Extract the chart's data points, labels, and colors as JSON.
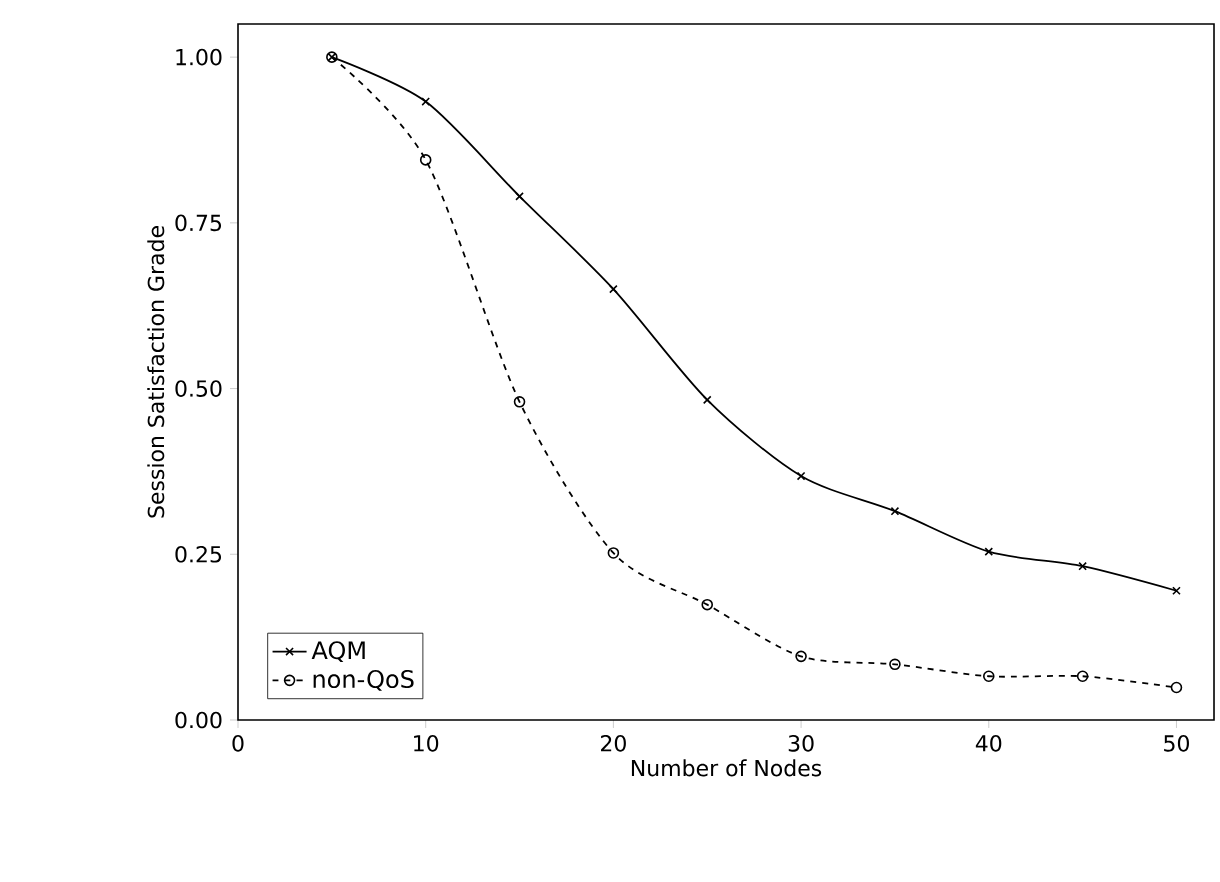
{
  "chart_data": {
    "type": "line",
    "xlabel": "Number of Nodes",
    "ylabel": "Session Satisfaction Grade",
    "x": [
      5,
      10,
      15,
      20,
      25,
      30,
      35,
      40,
      45,
      50
    ],
    "series": [
      {
        "name": "AQM",
        "color": "#000000",
        "marker": "cross",
        "line_style": "solid",
        "values": [
          1.0,
          0.933,
          0.79,
          0.65,
          0.483,
          0.368,
          0.315,
          0.254,
          0.232,
          0.195
        ]
      },
      {
        "name": "non-QoS",
        "color": "#000000",
        "marker": "circle",
        "line_style": "dashed",
        "values": [
          1.0,
          0.845,
          0.48,
          0.252,
          0.174,
          0.096,
          0.084,
          0.066,
          0.066,
          0.049
        ]
      }
    ],
    "xlim": [
      0,
      52
    ],
    "ylim": [
      0,
      1.05
    ],
    "xticks": [
      0,
      10,
      20,
      30,
      40,
      50
    ],
    "yticks": [
      {
        "value": 0,
        "label": "0.00"
      },
      {
        "value": 0.25,
        "label": "0.25"
      },
      {
        "value": 0.5,
        "label": "0.50"
      },
      {
        "value": 0.75,
        "label": "0.75"
      },
      {
        "value": 1,
        "label": "1.00"
      }
    ],
    "grid": false,
    "legend": "bottom left"
  }
}
